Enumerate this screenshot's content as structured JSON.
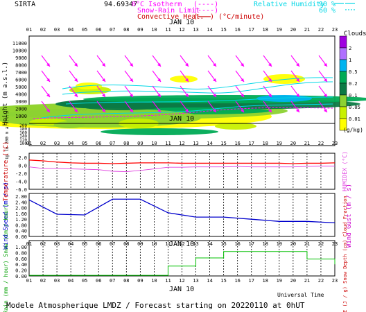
{
  "header": {
    "site": "SIRTA",
    "coords": "94.69347",
    "isotherm_label": "0°C Isotherm",
    "isotherm_key": "(----)",
    "snow_rain_label": "Snow-Rain Limit",
    "snow_rain_key": "(----)",
    "convective_label": "Convective Heat.",
    "convective_key": "(",
    "convective_unit": ") (°C/minute)",
    "rh_label": "Relative Humidity",
    "rh_90": "90 %",
    "rh_60": "60 %",
    "date_label": "JAN 10"
  },
  "footer": {
    "universal_time": "Universal Time",
    "model_text": "Modele Atmospherique LMDZ / Forecast starting on 20220110 at 0hUT"
  },
  "colors": {
    "humidity": "#00d7e6",
    "isotherm": "#ff00ff",
    "wind_barb": "#ff00ff",
    "temperature": "#ff0000",
    "humidex": "#e040e0",
    "wind_speed": "#0000cc",
    "rain": "#00c000",
    "axis_label_red": "#cc0000",
    "axis_label_blue": "#0000cc",
    "axis_label_green": "#00a000"
  },
  "hours": [
    "01",
    "02",
    "03",
    "04",
    "05",
    "06",
    "07",
    "08",
    "09",
    "10",
    "11",
    "12",
    "13",
    "14",
    "15",
    "16",
    "17",
    "18",
    "19",
    "20",
    "21",
    "22",
    "23"
  ],
  "clouds_legend": {
    "title": "Clouds",
    "unit": "(g/kg)",
    "levels": [
      "2",
      "1",
      "0.5",
      "0.2",
      "0.1",
      "0.05",
      "0.01"
    ],
    "colors": [
      "#a000e0",
      "#b070ff",
      "#00b4f0",
      "#00aa55",
      "#0c7a44",
      "#8cd232",
      "#c8f000",
      "#ffff00"
    ]
  },
  "chart_data": [
    {
      "type": "heatmap",
      "title": "",
      "ylabel": "Height (m a.s.l.)",
      "ylabel_low": "Up to 200 m a.s.l.",
      "y_ticks_high": [
        "11000",
        "10000",
        "9000",
        "8000",
        "7000",
        "6000",
        "5000",
        "4000",
        "3000",
        "2000",
        "1000"
      ],
      "y_ticks_low": [
        "200",
        "180",
        "160",
        "140",
        "120",
        "100"
      ],
      "x": [
        "01",
        "02",
        "03",
        "04",
        "05",
        "06",
        "07",
        "08",
        "09",
        "10",
        "11",
        "12",
        "13",
        "14",
        "15",
        "16",
        "17",
        "18",
        "19",
        "20",
        "21",
        "22",
        "23"
      ]
    },
    {
      "type": "line",
      "ylabel": "Temperature (°C)",
      "ylabel_right": "HUMIDEX (°C)",
      "y_ticks": [
        "2.0",
        "0.0",
        "-2.0",
        "-4.0",
        "-6.0"
      ],
      "ylim": [
        -6,
        3
      ],
      "x": [
        1,
        2,
        3,
        4,
        5,
        6,
        7,
        8,
        9,
        10,
        11,
        12,
        13,
        14,
        15,
        16,
        17,
        18,
        19,
        20,
        21,
        22,
        23
      ],
      "series": [
        {
          "values": [
            1.3,
            1.1,
            0.8,
            0.6,
            0.5,
            0.5,
            0.4,
            0.5,
            0.6,
            0.6,
            0.6,
            0.5,
            0.5,
            0.5,
            0.5,
            0.5,
            0.5,
            0.5,
            0.5,
            0.4,
            0.5,
            0.5,
            0.6
          ]
        },
        {
          "values": [
            -0.4,
            -0.8,
            -0.8,
            -0.9,
            -1.0,
            -1.1,
            -1.5,
            -1.6,
            -1.3,
            -0.9,
            -0.5,
            -0.5,
            -0.4,
            -0.4,
            -0.4,
            -0.3,
            -0.4,
            -0.4,
            -0.4,
            -0.4,
            -0.3,
            -0.2,
            -0.2
          ]
        }
      ]
    },
    {
      "type": "line",
      "ylabel": "Wind Speed (m / s)",
      "ylabel_right": "Wind Gust (m / s)",
      "y_ticks": [
        "2.80",
        "2.40",
        "2.00",
        "1.60",
        "1.20",
        "0.80",
        "0.40",
        "0.00"
      ],
      "ylim": [
        0,
        3.0
      ],
      "x": [
        1,
        3,
        5,
        7,
        9,
        11,
        13,
        15,
        17,
        19,
        21,
        23
      ],
      "series": [
        {
          "values": [
            2.55,
            1.55,
            1.5,
            2.6,
            2.6,
            1.65,
            1.35,
            1.35,
            1.2,
            1.05,
            1.05,
            0.95
          ]
        }
      ]
    },
    {
      "type": "area",
      "ylabel": "Rain (mm / hour) Snow (cm / hour)",
      "ylabel_right": "CAPE (J / g) Snow Depth (cm) Cloud Fraction",
      "y_ticks": [
        "1.00",
        "0.80",
        "0.60",
        "0.40",
        "0.20",
        "0.00"
      ],
      "ylim": [
        0,
        1.0
      ],
      "x": [
        1,
        2,
        3,
        4,
        5,
        6,
        7,
        8,
        9,
        10,
        11,
        12,
        13,
        14,
        15,
        16,
        17,
        18,
        19,
        20,
        21,
        22,
        23
      ],
      "series": [
        {
          "values": [
            0.02,
            0.02,
            0.02,
            0.02,
            0.02,
            0.02,
            0.02,
            0.02,
            0.02,
            0.02,
            0.34,
            0.34,
            0.62,
            0.62,
            0.84,
            0.84,
            0.84,
            0.84,
            0.84,
            0.84,
            0.58,
            0.58,
            0.4
          ]
        }
      ]
    }
  ]
}
